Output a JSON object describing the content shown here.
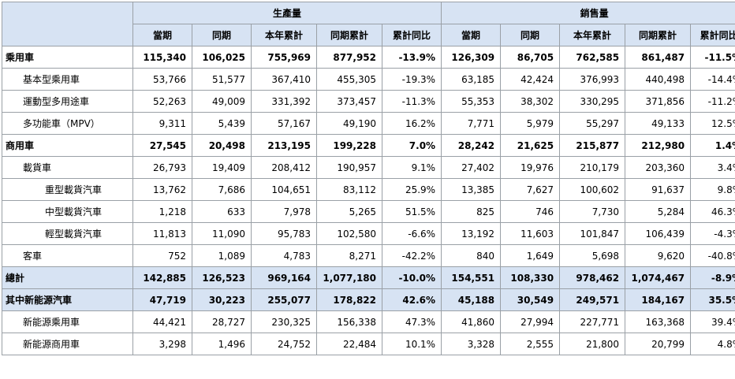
{
  "groups": {
    "production": "生產量",
    "sales": "銷售量"
  },
  "columns": [
    "當期",
    "同期",
    "本年累計",
    "同期累計",
    "累計同比",
    "當期",
    "同期",
    "本年累計",
    "同期累計",
    "累計同比"
  ],
  "rows": [
    {
      "name": "乘用車",
      "values": [
        "115,340",
        "106,025",
        "755,969",
        "877,952",
        "-13.9%",
        "126,309",
        "86,705",
        "762,585",
        "861,487",
        "-11.5%"
      ]
    },
    {
      "name": "基本型乘用車",
      "values": [
        "53,766",
        "51,577",
        "367,410",
        "455,305",
        "-19.3%",
        "63,185",
        "42,424",
        "376,993",
        "440,498",
        "-14.4%"
      ]
    },
    {
      "name": "運動型多用途車",
      "values": [
        "52,263",
        "49,009",
        "331,392",
        "373,457",
        "-11.3%",
        "55,353",
        "38,302",
        "330,295",
        "371,856",
        "-11.2%"
      ]
    },
    {
      "name": "多功能車（MPV）",
      "values": [
        "9,311",
        "5,439",
        "57,167",
        "49,190",
        "16.2%",
        "7,771",
        "5,979",
        "55,297",
        "49,133",
        "12.5%"
      ]
    },
    {
      "name": "商用車",
      "values": [
        "27,545",
        "20,498",
        "213,195",
        "199,228",
        "7.0%",
        "28,242",
        "21,625",
        "215,877",
        "212,980",
        "1.4%"
      ]
    },
    {
      "name": "載貨車",
      "values": [
        "26,793",
        "19,409",
        "208,412",
        "190,957",
        "9.1%",
        "27,402",
        "19,976",
        "210,179",
        "203,360",
        "3.4%"
      ]
    },
    {
      "name": "重型載貨汽車",
      "values": [
        "13,762",
        "7,686",
        "104,651",
        "83,112",
        "25.9%",
        "13,385",
        "7,627",
        "100,602",
        "91,637",
        "9.8%"
      ]
    },
    {
      "name": "中型載貨汽車",
      "values": [
        "1,218",
        "633",
        "7,978",
        "5,265",
        "51.5%",
        "825",
        "746",
        "7,730",
        "5,284",
        "46.3%"
      ]
    },
    {
      "name": "輕型載貨汽車",
      "values": [
        "11,813",
        "11,090",
        "95,783",
        "102,580",
        "-6.6%",
        "13,192",
        "11,603",
        "101,847",
        "106,439",
        "-4.3%"
      ]
    },
    {
      "name": "客車",
      "values": [
        "752",
        "1,089",
        "4,783",
        "8,271",
        "-42.2%",
        "840",
        "1,649",
        "5,698",
        "9,620",
        "-40.8%"
      ]
    },
    {
      "name": "總計",
      "values": [
        "142,885",
        "126,523",
        "969,164",
        "1,077,180",
        "-10.0%",
        "154,551",
        "108,330",
        "978,462",
        "1,074,467",
        "-8.9%"
      ]
    },
    {
      "name": "其中新能源汽車",
      "values": [
        "47,719",
        "30,223",
        "255,077",
        "178,822",
        "42.6%",
        "45,188",
        "30,549",
        "249,571",
        "184,167",
        "35.5%"
      ]
    },
    {
      "name": "新能源乘用車",
      "values": [
        "44,421",
        "28,727",
        "230,325",
        "156,338",
        "47.3%",
        "41,860",
        "27,994",
        "227,771",
        "163,368",
        "39.4%"
      ]
    },
    {
      "name": "新能源商用車",
      "values": [
        "3,298",
        "1,496",
        "24,752",
        "22,484",
        "10.1%",
        "3,328",
        "2,555",
        "21,800",
        "20,799",
        "4.8%"
      ]
    }
  ]
}
